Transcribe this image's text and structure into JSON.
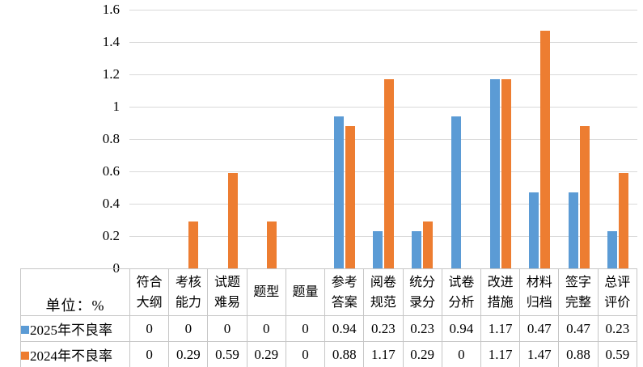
{
  "chart_data": {
    "type": "bar",
    "unit_label": "单位：%",
    "categories": [
      "符合大纲",
      "考核能力",
      "试题难易",
      "题型",
      "题量",
      "参考答案",
      "阅卷规范",
      "统分录分",
      "试卷分析",
      "改进措施",
      "材料归档",
      "签字完整",
      "总评评价"
    ],
    "series": [
      {
        "name": "2025年不良率",
        "color": "#5B9BD5",
        "values": [
          0,
          0,
          0,
          0,
          0,
          0.94,
          0.23,
          0.23,
          0.94,
          1.17,
          0.47,
          0.47,
          0.23
        ]
      },
      {
        "name": "2024年不良率",
        "color": "#ED7D31",
        "values": [
          0,
          0.29,
          0.59,
          0.29,
          0,
          0.88,
          1.17,
          0.29,
          0,
          1.17,
          1.47,
          0.88,
          0.59
        ]
      }
    ],
    "y_axis": {
      "min": 0,
      "max": 1.6,
      "step": 0.2,
      "ticks": [
        "0",
        "0.2",
        "0.4",
        "0.6",
        "0.8",
        "1",
        "1.2",
        "1.4",
        "1.6"
      ]
    },
    "grid": true,
    "legend_position": "table-left",
    "colors": {
      "gridline": "#d9d9d9",
      "table_border": "#c6c6c6",
      "text": "#000000",
      "background": "#ffffff"
    }
  }
}
